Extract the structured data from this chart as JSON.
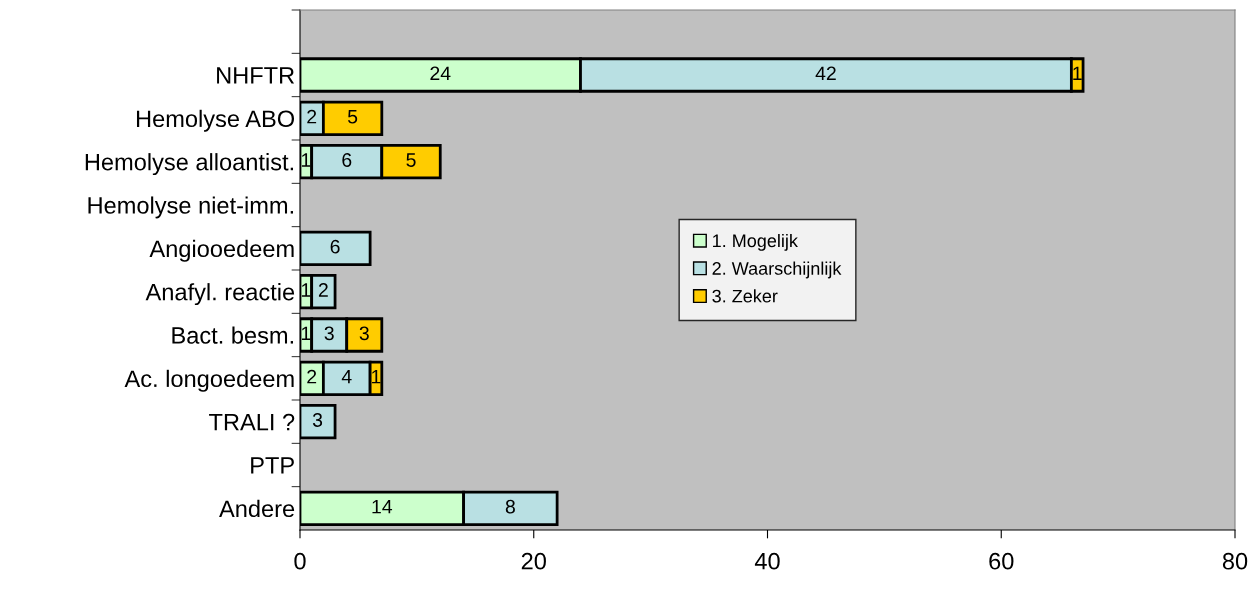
{
  "chart_data": {
    "type": "bar",
    "orientation": "horizontal",
    "stacked": true,
    "data_labels": true,
    "legend": "center",
    "grid": false,
    "categories": [
      null,
      "NHFTR",
      "Hemolyse ABO",
      "Hemolyse alloantist.",
      "Hemolyse niet-imm.",
      "Angiooedeem",
      "Anafyl. reactie",
      "Bact. besm.",
      "Ac. longoedeem",
      "TRALI ?",
      "PTP",
      "Andere"
    ],
    "series": [
      {
        "name": "1. Mogelijk",
        "color": "#ccffcc",
        "values": [
          null,
          24,
          null,
          1,
          null,
          null,
          1,
          1,
          2,
          null,
          null,
          14
        ]
      },
      {
        "name": "2. Waarschijnlijk",
        "color": "#b9e0e3",
        "values": [
          null,
          42,
          2,
          6,
          null,
          6,
          2,
          3,
          4,
          3,
          null,
          8
        ]
      },
      {
        "name": "3. Zeker",
        "color": "#ffcc00",
        "values": [
          null,
          1,
          5,
          5,
          null,
          null,
          null,
          3,
          1,
          null,
          null,
          null
        ]
      }
    ],
    "xlim": [
      0,
      80
    ],
    "xticks": [
      0,
      20,
      40,
      60,
      80
    ]
  }
}
